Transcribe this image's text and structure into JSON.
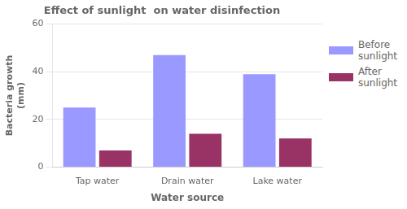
{
  "chart_data": {
    "type": "bar",
    "title": "Effect of sunlight  on water disinfection",
    "xlabel": "Water source",
    "ylabel": "Bacteria growth\n(mm)",
    "categories": [
      "Tap water",
      "Drain water",
      "Lake water"
    ],
    "series": [
      {
        "name": "Before\nsunlight",
        "color": "#9999FF",
        "values": [
          25,
          47,
          39
        ]
      },
      {
        "name": "After\nsunlight",
        "color": "#993366",
        "values": [
          7,
          14,
          12
        ]
      }
    ],
    "ylim": [
      0,
      60
    ],
    "yticks": [
      0,
      20,
      40,
      60
    ],
    "grid": true,
    "legend": "right"
  }
}
